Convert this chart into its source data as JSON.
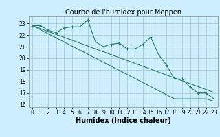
{
  "title": "Courbe de l'humidex pour Meppen",
  "xlabel": "Humidex (Indice chaleur)",
  "bg_color": "#cceeff",
  "grid_color": "#aacccc",
  "line_color": "#2a7a6a",
  "ylim": [
    15.8,
    23.6
  ],
  "xlim": [
    -0.5,
    23.5
  ],
  "yticks": [
    16,
    17,
    18,
    19,
    20,
    21,
    22,
    23
  ],
  "xticks": [
    0,
    1,
    2,
    3,
    4,
    5,
    6,
    7,
    8,
    9,
    10,
    11,
    12,
    13,
    14,
    15,
    16,
    17,
    18,
    19,
    20,
    21,
    22,
    23
  ],
  "x": [
    0,
    1,
    2,
    3,
    4,
    5,
    6,
    7,
    8,
    9,
    10,
    11,
    12,
    13,
    14,
    15,
    16,
    17,
    18,
    19,
    20,
    21,
    22,
    23
  ],
  "y_main": [
    22.8,
    22.8,
    22.4,
    22.2,
    22.6,
    22.7,
    22.7,
    23.3,
    21.4,
    21.0,
    21.2,
    21.3,
    20.8,
    20.8,
    21.2,
    21.8,
    20.3,
    19.4,
    18.2,
    18.2,
    17.5,
    17.0,
    17.0,
    16.5
  ],
  "y_line2": [
    22.8,
    22.55,
    22.3,
    22.05,
    21.8,
    21.55,
    21.3,
    21.05,
    20.8,
    20.55,
    20.3,
    20.05,
    19.8,
    19.55,
    19.3,
    19.05,
    18.8,
    18.55,
    18.3,
    18.05,
    17.8,
    17.55,
    17.3,
    17.05
  ],
  "y_line3": [
    22.8,
    22.45,
    22.1,
    21.75,
    21.4,
    21.05,
    20.7,
    20.35,
    20.0,
    19.65,
    19.3,
    18.95,
    18.6,
    18.25,
    17.9,
    17.55,
    17.2,
    16.85,
    16.5,
    16.5,
    16.5,
    16.5,
    16.5,
    16.3
  ],
  "tick_fontsize": 5.5,
  "xlabel_fontsize": 7,
  "title_fontsize": 7
}
